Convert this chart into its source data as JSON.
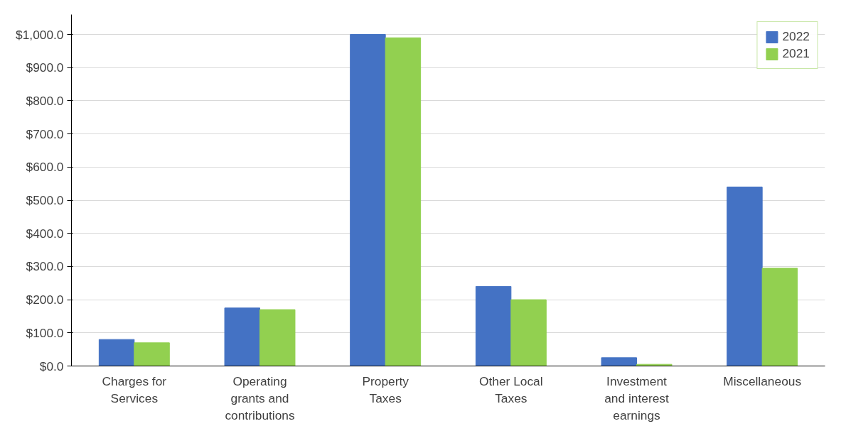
{
  "chart_data": {
    "type": "bar",
    "categories": [
      "Charges for Services",
      "Operating grants and contributions",
      "Property Taxes",
      "Other Local Taxes",
      "Investment and interest earnings",
      "Miscellaneous"
    ],
    "series": [
      {
        "name": "2022",
        "color": "#4472c4",
        "values": [
          80,
          175,
          1000,
          240,
          25,
          540
        ]
      },
      {
        "name": "2021",
        "color": "#92d050",
        "values": [
          70,
          170,
          990,
          200,
          5,
          295
        ]
      }
    ],
    "ylim": [
      0,
      1000
    ],
    "yticks": [
      {
        "value": 0,
        "label": "$0.0"
      },
      {
        "value": 100,
        "label": "$100.0"
      },
      {
        "value": 200,
        "label": "$200.0"
      },
      {
        "value": 300,
        "label": "$300.0"
      },
      {
        "value": 400,
        "label": "$400.0"
      },
      {
        "value": 500,
        "label": "$500.0"
      },
      {
        "value": 600,
        "label": "$600.0"
      },
      {
        "value": 700,
        "label": "$700.0"
      },
      {
        "value": 800,
        "label": "$800.0"
      },
      {
        "value": 900,
        "label": "$900.0"
      },
      {
        "value": 1000,
        "label": "$1,000.0"
      }
    ],
    "grid": "y",
    "legend": "top right"
  }
}
